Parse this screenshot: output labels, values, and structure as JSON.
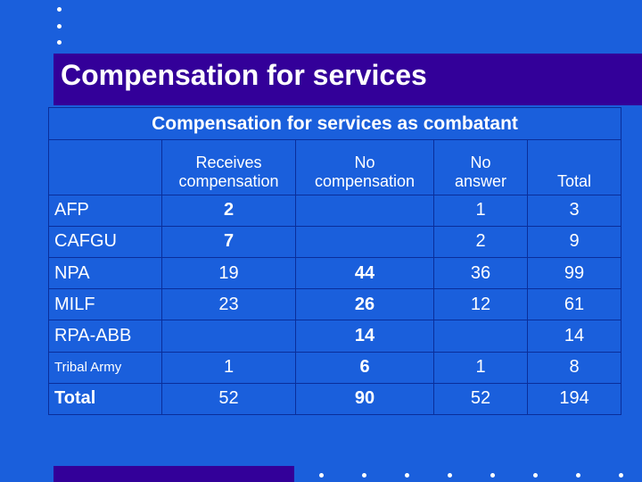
{
  "slide": {
    "title": "Compensation for services"
  },
  "table": {
    "caption": "Compensation for services as combatant",
    "columns": [
      "Receives compensation",
      "No compensation",
      "No answer",
      "Total"
    ],
    "header_lines": {
      "receives": [
        "Receives",
        "compensation"
      ],
      "no_comp": [
        "No",
        "compensation"
      ],
      "no_answer": [
        "No",
        "answer"
      ],
      "total": "Total"
    },
    "rows": [
      {
        "label": "AFP",
        "receives": "2",
        "no_comp": "",
        "no_answer": "1",
        "total": "3"
      },
      {
        "label": "CAFGU",
        "receives": "7",
        "no_comp": "",
        "no_answer": "2",
        "total": "9"
      },
      {
        "label": "NPA",
        "receives": "19",
        "no_comp": "44",
        "no_answer": "36",
        "total": "99"
      },
      {
        "label": "MILF",
        "receives": "23",
        "no_comp": "26",
        "no_answer": "12",
        "total": "61"
      },
      {
        "label": "RPA-ABB",
        "receives": "",
        "no_comp": "14",
        "no_answer": "",
        "total": "14"
      },
      {
        "label": "Tribal Army",
        "receives": "1",
        "no_comp": "6",
        "no_answer": "1",
        "total": "8"
      },
      {
        "label": "Total",
        "receives": "52",
        "no_comp": "90",
        "no_answer": "52",
        "total": "194"
      }
    ]
  },
  "colors": {
    "background": "#1a5fdc",
    "title_band": "#330099",
    "text": "#ffffff"
  }
}
